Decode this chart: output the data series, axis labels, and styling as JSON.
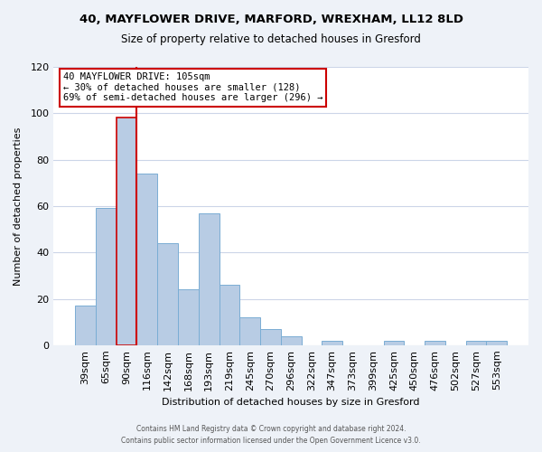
{
  "title_line1": "40, MAYFLOWER DRIVE, MARFORD, WREXHAM, LL12 8LD",
  "title_line2": "Size of property relative to detached houses in Gresford",
  "xlabel": "Distribution of detached houses by size in Gresford",
  "ylabel": "Number of detached properties",
  "bar_color": "#b8cce4",
  "bar_edge_color": "#7aadd4",
  "highlight_bar_index": 2,
  "highlight_bar_edge_color": "#cc0000",
  "vline_color": "#cc0000",
  "vline_x_index": 2,
  "categories": [
    "39sqm",
    "65sqm",
    "90sqm",
    "116sqm",
    "142sqm",
    "168sqm",
    "193sqm",
    "219sqm",
    "245sqm",
    "270sqm",
    "296sqm",
    "322sqm",
    "347sqm",
    "373sqm",
    "399sqm",
    "425sqm",
    "450sqm",
    "476sqm",
    "502sqm",
    "527sqm",
    "553sqm"
  ],
  "values": [
    17,
    59,
    98,
    74,
    44,
    24,
    57,
    26,
    12,
    7,
    4,
    0,
    2,
    0,
    0,
    2,
    0,
    2,
    0,
    2,
    2
  ],
  "annotation_title": "40 MAYFLOWER DRIVE: 105sqm",
  "annotation_line1": "← 30% of detached houses are smaller (128)",
  "annotation_line2": "69% of semi-detached houses are larger (296) →",
  "annotation_box_facecolor": "#ffffff",
  "annotation_box_edgecolor": "#cc0000",
  "ylim": [
    0,
    120
  ],
  "yticks": [
    0,
    20,
    40,
    60,
    80,
    100,
    120
  ],
  "footer_line1": "Contains HM Land Registry data © Crown copyright and database right 2024.",
  "footer_line2": "Contains public sector information licensed under the Open Government Licence v3.0.",
  "background_color": "#eef2f8",
  "plot_background_color": "#ffffff",
  "grid_color": "#ccd5e8"
}
